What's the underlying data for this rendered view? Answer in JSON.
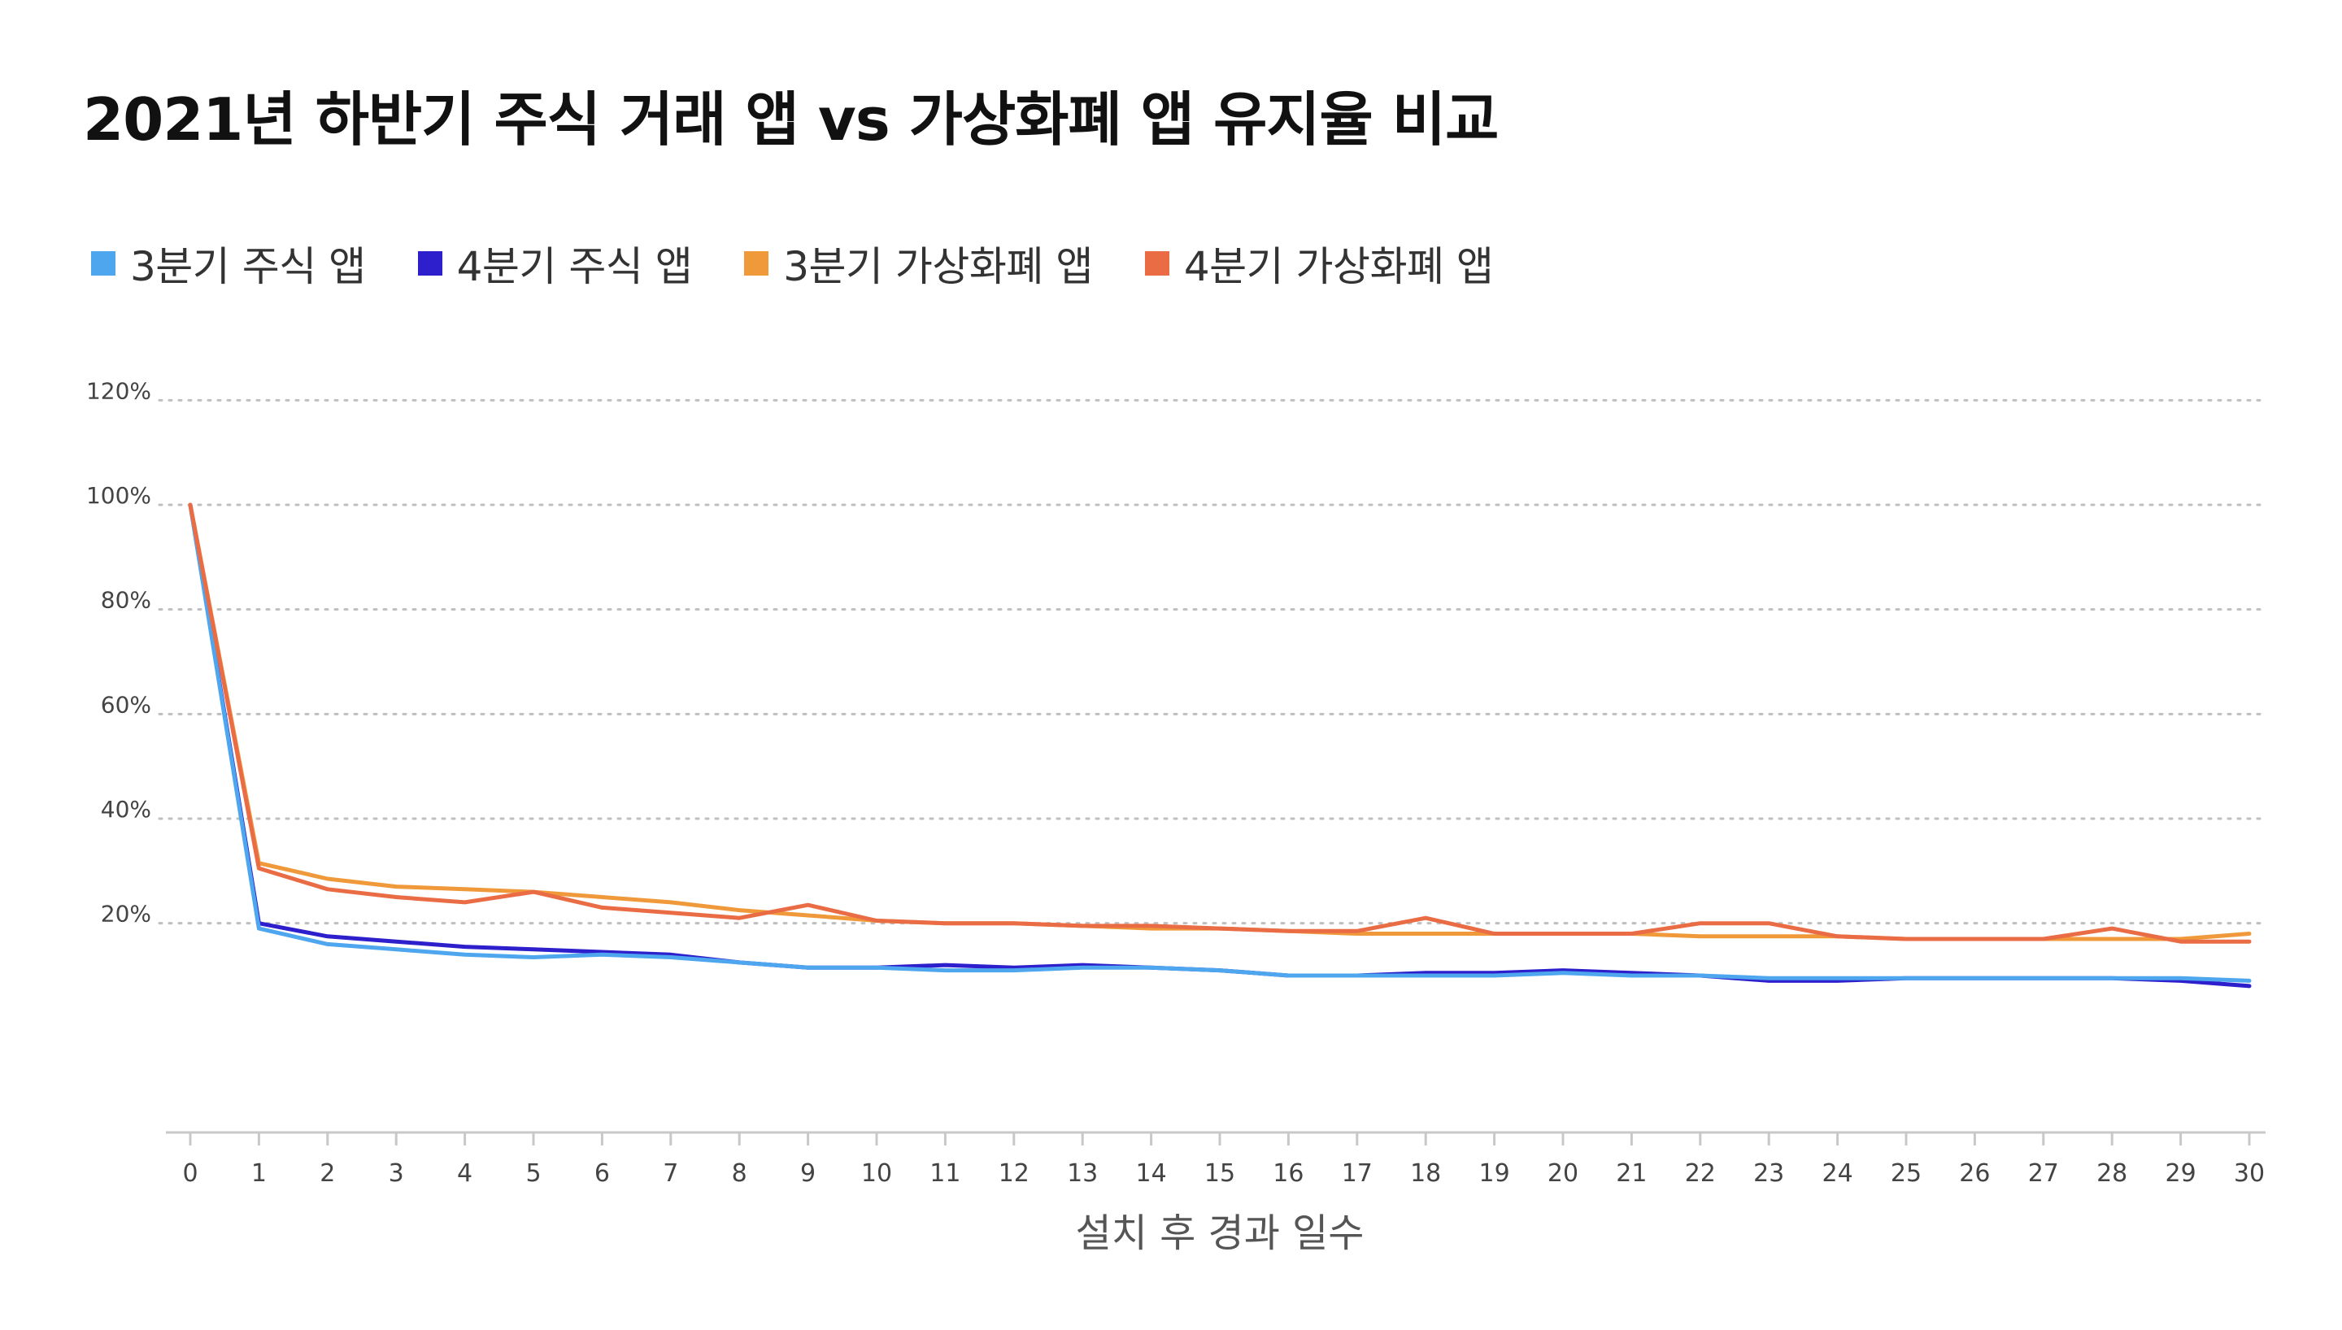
{
  "title": "2021년 하반기 주식 거래 앱 vs 가상화폐 앱 유지율 비교",
  "chart_data": {
    "type": "line",
    "title": "2021년 하반기 주식 거래 앱 vs 가상화폐 앱 유지율 비교",
    "xlabel": "설치 후 경과 일수",
    "ylabel": "",
    "x": [
      0,
      1,
      2,
      3,
      4,
      5,
      6,
      7,
      8,
      9,
      10,
      11,
      12,
      13,
      14,
      15,
      16,
      17,
      18,
      19,
      20,
      21,
      22,
      23,
      24,
      25,
      26,
      27,
      28,
      29,
      30
    ],
    "ylim": [
      -20,
      120
    ],
    "yticks": [
      20,
      40,
      60,
      80,
      100,
      120
    ],
    "ytick_labels": [
      "20%",
      "40%",
      "60%",
      "80%",
      "100%",
      "120%"
    ],
    "grid": true,
    "legend_position": "top-left",
    "series": [
      {
        "name": "3분기 주식 앱",
        "color": "#4da6ee",
        "values": [
          100,
          19,
          16,
          15,
          14,
          13.5,
          14,
          13.5,
          12.5,
          11.5,
          11.5,
          11,
          11,
          11.5,
          11.5,
          11,
          10,
          10,
          10,
          10,
          10.5,
          10,
          10,
          9.5,
          9.5,
          9.5,
          9.5,
          9.5,
          9.5,
          9.5,
          9
        ]
      },
      {
        "name": "4분기 주식 앱",
        "color": "#2d1fcc",
        "values": [
          100,
          20,
          17.5,
          16.5,
          15.5,
          15,
          14.5,
          14,
          12.5,
          11.5,
          11.5,
          12,
          11.5,
          12,
          11.5,
          11,
          10,
          10,
          10.5,
          10.5,
          11,
          10.5,
          10,
          9,
          9,
          9.5,
          9.5,
          9.5,
          9.5,
          9,
          8
        ]
      },
      {
        "name": "3분기 가상화폐 앱",
        "color": "#f0993a",
        "values": [
          100,
          31.5,
          28.5,
          27,
          26.5,
          26,
          25,
          24,
          22.5,
          21.5,
          20.5,
          20,
          20,
          19.5,
          19,
          19,
          18.5,
          18,
          18,
          18,
          18,
          18,
          17.5,
          17.5,
          17.5,
          17,
          17,
          17,
          17,
          17,
          18
        ]
      },
      {
        "name": "4분기 가상화폐 앱",
        "color": "#ea6c45",
        "values": [
          100,
          30.5,
          26.5,
          25,
          24,
          26,
          23,
          22,
          21,
          23.5,
          20.5,
          20,
          20,
          19.5,
          19.5,
          19,
          18.5,
          18.5,
          21,
          18,
          18,
          18,
          20,
          20,
          17.5,
          17,
          17,
          17,
          19,
          16.5,
          16.5
        ]
      }
    ]
  }
}
